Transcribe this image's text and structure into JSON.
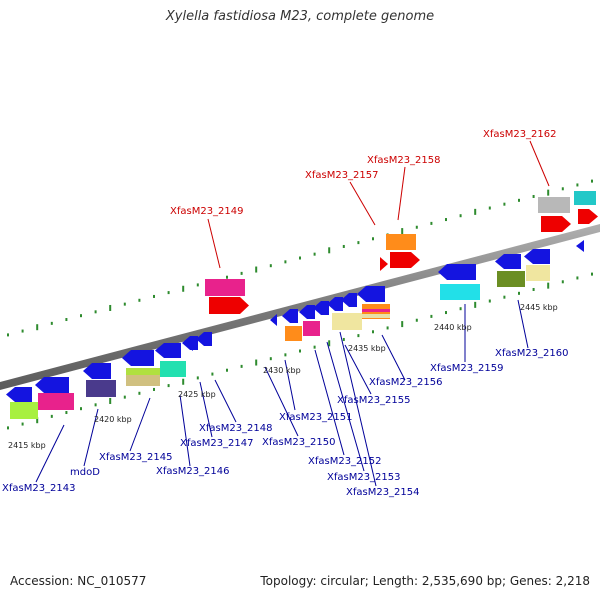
{
  "title": "Xylella fastidiosa M23, complete genome",
  "footer": {
    "accession": "Accession: NC_010577",
    "summary": "Topology: circular; Length: 2,535,690 bp; Genes: 2,218"
  },
  "colors": {
    "plus_label": "#cc0000",
    "minus_label": "#000099",
    "tick": "#2e8b2e",
    "backbone": "#8c8c8c"
  },
  "scale_labels": [
    "2415 kbp",
    "2420 kbp",
    "2425 kbp",
    "2430 kbp",
    "2435 kbp",
    "2440 kbp",
    "2445 kbp"
  ],
  "gene_labels": [
    {
      "text": "XfasM23_2162",
      "strand": "plus"
    },
    {
      "text": "XfasM23_2158",
      "strand": "plus"
    },
    {
      "text": "XfasM23_2157",
      "strand": "plus"
    },
    {
      "text": "XfasM23_2149",
      "strand": "plus"
    },
    {
      "text": "XfasM23_2156",
      "strand": "minus"
    },
    {
      "text": "XfasM23_2159",
      "strand": "minus"
    },
    {
      "text": "XfasM23_2160",
      "strand": "minus"
    },
    {
      "text": "XfasM23_2151",
      "strand": "minus"
    },
    {
      "text": "XfasM23_2155",
      "strand": "minus"
    },
    {
      "text": "XfasM23_2148",
      "strand": "minus"
    },
    {
      "text": "XfasM23_2147",
      "strand": "minus"
    },
    {
      "text": "XfasM23_2150",
      "strand": "minus"
    },
    {
      "text": "XfasM23_2145",
      "strand": "minus"
    },
    {
      "text": "XfasM23_2146",
      "strand": "minus"
    },
    {
      "text": "XfasM23_2152",
      "strand": "minus"
    },
    {
      "text": "XfasM23_2153",
      "strand": "minus"
    },
    {
      "text": "XfasM23_2154",
      "strand": "minus"
    },
    {
      "text": "mdoD",
      "strand": "minus"
    },
    {
      "text": "XfasM23_2143",
      "strand": "minus"
    }
  ]
}
